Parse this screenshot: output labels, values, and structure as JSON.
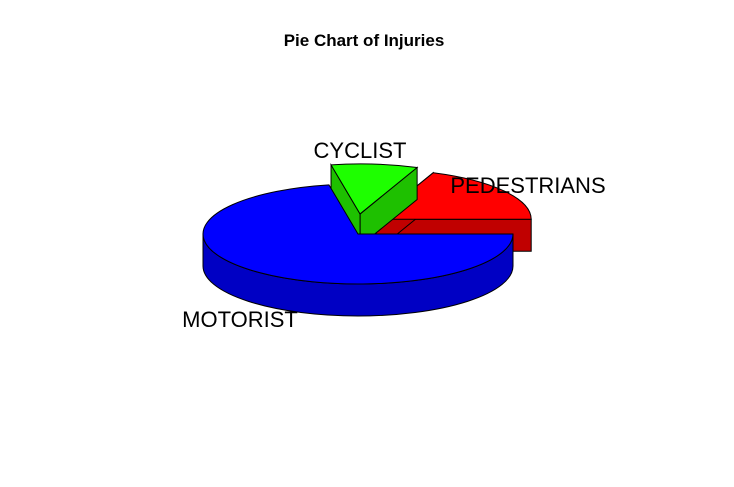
{
  "chart_data": {
    "type": "pie",
    "style": "3d-exploded",
    "title": "Pie Chart of Injuries",
    "slices": [
      {
        "label": "PEDESTRIANS",
        "value": 19,
        "color": "#ff0000",
        "side_color": "#c00000"
      },
      {
        "label": "CYCLIST",
        "value": 9,
        "color": "#1eff00",
        "side_color": "#1ec000"
      },
      {
        "label": "MOTORIST",
        "value": 72,
        "color": "#0000ff",
        "side_color": "#0000c4"
      }
    ],
    "outline_color": "#000000"
  }
}
